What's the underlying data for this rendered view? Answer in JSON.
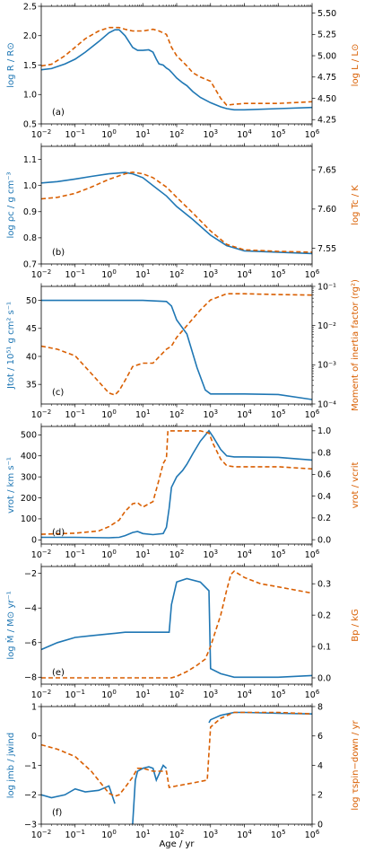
{
  "colors": {
    "blue": "#1f77b4",
    "orange": "#d95f02"
  },
  "xaxis": {
    "label": "Age / yr",
    "type": "log",
    "range": [
      0.01,
      1000000
    ],
    "ticks": [
      {
        "v": 0.01,
        "b": "10",
        "e": "−2"
      },
      {
        "v": 0.1,
        "b": "10",
        "e": "−1"
      },
      {
        "v": 1,
        "b": "10",
        "e": "0"
      },
      {
        "v": 10,
        "b": "10",
        "e": "1"
      },
      {
        "v": 100,
        "b": "10",
        "e": "2"
      },
      {
        "v": 1000,
        "b": "10",
        "e": "3"
      },
      {
        "v": 10000,
        "b": "10",
        "e": "4"
      },
      {
        "v": 100000,
        "b": "10",
        "e": "5"
      },
      {
        "v": 1000000,
        "b": "10",
        "e": "6"
      }
    ]
  },
  "chart_data": [
    {
      "type": "line",
      "panel_label": "(a)",
      "left": {
        "label": "log R / R⊙",
        "range": [
          0.5,
          2.5
        ],
        "ticks": [
          "0.5",
          "1.0",
          "1.5",
          "2.0",
          "2.5"
        ],
        "tick_values": [
          0.5,
          1.0,
          1.5,
          2.0,
          2.5
        ]
      },
      "right": {
        "label": "log L / L⊙",
        "range": [
          4.2,
          5.58
        ],
        "ticks": [
          "4.25",
          "4.50",
          "4.75",
          "5.00",
          "5.25",
          "5.50"
        ],
        "tick_values": [
          4.25,
          4.5,
          4.75,
          5.0,
          5.25,
          5.5
        ]
      },
      "series": [
        {
          "axis": "left",
          "color": "blue",
          "style": "solid",
          "x": [
            0.01,
            0.02,
            0.05,
            0.1,
            0.2,
            0.5,
            1,
            1.5,
            2,
            3,
            5,
            7,
            10,
            15,
            20,
            25,
            30,
            40,
            50,
            60,
            70,
            100,
            150,
            200,
            300,
            500,
            1000,
            2000,
            3000,
            5000,
            10000,
            100000,
            1000000
          ],
          "y": [
            1.42,
            1.44,
            1.52,
            1.6,
            1.72,
            1.9,
            2.05,
            2.1,
            2.1,
            2.0,
            1.8,
            1.75,
            1.75,
            1.76,
            1.72,
            1.6,
            1.52,
            1.5,
            1.45,
            1.42,
            1.38,
            1.28,
            1.2,
            1.15,
            1.05,
            0.95,
            0.86,
            0.79,
            0.76,
            0.74,
            0.74,
            0.76,
            0.78
          ]
        },
        {
          "axis": "right",
          "color": "orange",
          "style": "dashed",
          "x": [
            0.01,
            0.02,
            0.05,
            0.1,
            0.2,
            0.5,
            1,
            2,
            3,
            5,
            10,
            20,
            30,
            50,
            70,
            100,
            200,
            300,
            500,
            1000,
            2000,
            3000,
            5000,
            10000,
            100000,
            1000000
          ],
          "y": [
            4.88,
            4.9,
            5.0,
            5.1,
            5.2,
            5.29,
            5.33,
            5.33,
            5.31,
            5.29,
            5.29,
            5.31,
            5.29,
            5.25,
            5.1,
            5.0,
            4.88,
            4.8,
            4.75,
            4.7,
            4.5,
            4.42,
            4.43,
            4.44,
            4.44,
            4.46
          ]
        }
      ]
    },
    {
      "type": "line",
      "panel_label": "(b)",
      "left": {
        "label": "log ρc / g cm⁻³",
        "range": [
          0.7,
          1.15
        ],
        "ticks": [
          "0.7",
          "0.8",
          "0.9",
          "1.0",
          "1.1"
        ],
        "tick_values": [
          0.7,
          0.8,
          0.9,
          1.0,
          1.1
        ]
      },
      "right": {
        "label": "log Tc / K",
        "range": [
          7.53,
          7.68
        ],
        "ticks": [
          "7.55",
          "7.60",
          "7.65"
        ],
        "tick_values": [
          7.55,
          7.6,
          7.65
        ]
      },
      "series": [
        {
          "axis": "left",
          "color": "blue",
          "style": "solid",
          "x": [
            0.01,
            0.03,
            0.1,
            0.3,
            1,
            3,
            5,
            10,
            20,
            50,
            100,
            300,
            1000,
            3000,
            10000,
            100000,
            1000000
          ],
          "y": [
            1.01,
            1.015,
            1.025,
            1.035,
            1.045,
            1.05,
            1.045,
            1.03,
            1.0,
            0.96,
            0.92,
            0.87,
            0.81,
            0.77,
            0.75,
            0.745,
            0.74
          ]
        },
        {
          "axis": "right",
          "color": "orange",
          "style": "dashed",
          "x": [
            0.01,
            0.03,
            0.1,
            0.3,
            1,
            3,
            5,
            10,
            20,
            50,
            100,
            300,
            1000,
            3000,
            10000,
            100000,
            1000000
          ],
          "y": [
            7.613,
            7.615,
            7.62,
            7.628,
            7.638,
            7.645,
            7.647,
            7.645,
            7.64,
            7.628,
            7.615,
            7.595,
            7.572,
            7.555,
            7.548,
            7.546,
            7.545
          ]
        }
      ]
    },
    {
      "type": "line",
      "panel_label": "(c)",
      "left": {
        "label": "Jtot / 10⁵¹ g cm² s⁻¹",
        "range": [
          31.5,
          52.5
        ],
        "ticks": [
          "35",
          "40",
          "45",
          "50"
        ],
        "tick_values": [
          35,
          40,
          45,
          50
        ]
      },
      "right": {
        "label": "Moment of inertia factor (rg²)",
        "log": true,
        "range": [
          0.0001,
          0.1
        ],
        "ticks": [
          "10⁻⁴",
          "10⁻³",
          "10⁻²",
          "10⁻¹"
        ],
        "tick_values": [
          0.0001,
          0.001,
          0.01,
          0.1
        ]
      },
      "series": [
        {
          "axis": "left",
          "color": "blue",
          "style": "solid",
          "x": [
            0.01,
            1,
            10,
            50,
            70,
            100,
            200,
            400,
            700,
            1000,
            10000,
            100000,
            1000000
          ],
          "y": [
            50,
            50,
            50,
            49.8,
            49,
            46.5,
            44,
            38,
            34,
            33.3,
            33.3,
            33.2,
            32.3
          ]
        },
        {
          "axis": "right",
          "color": "orange",
          "style": "dashed",
          "x": [
            0.01,
            0.03,
            0.1,
            0.3,
            1,
            1.5,
            2,
            3,
            5,
            10,
            20,
            50,
            70,
            100,
            200,
            500,
            1000,
            3000,
            10000,
            100000,
            1000000
          ],
          "y": [
            0.003,
            0.0025,
            0.0017,
            0.0006,
            0.00019,
            0.00017,
            0.00022,
            0.0004,
            0.0009,
            0.0011,
            0.0011,
            0.0025,
            0.003,
            0.005,
            0.01,
            0.025,
            0.045,
            0.065,
            0.065,
            0.062,
            0.06
          ]
        }
      ]
    },
    {
      "type": "line",
      "panel_label": "(d)",
      "left": {
        "label": "vrot / km s⁻¹",
        "range": [
          -20,
          540
        ],
        "ticks": [
          "0",
          "100",
          "200",
          "300",
          "400",
          "500"
        ],
        "tick_values": [
          0,
          100,
          200,
          300,
          400,
          500
        ]
      },
      "right": {
        "label": "vrot / vcrit",
        "range": [
          -0.04,
          1.04
        ],
        "ticks": [
          "0.0",
          "0.2",
          "0.4",
          "0.6",
          "0.8",
          "1.0"
        ],
        "tick_values": [
          0,
          0.2,
          0.4,
          0.6,
          0.8,
          1.0
        ]
      },
      "series": [
        {
          "axis": "left",
          "color": "blue",
          "style": "solid",
          "x": [
            0.01,
            0.1,
            1,
            2,
            3,
            5,
            7,
            10,
            20,
            40,
            50,
            60,
            70,
            100,
            150,
            200,
            300,
            500,
            900,
            1200,
            2000,
            3000,
            5000,
            10000,
            100000,
            1000000
          ],
          "y": [
            12,
            12,
            10,
            12,
            20,
            35,
            40,
            30,
            25,
            30,
            60,
            150,
            250,
            300,
            330,
            360,
            410,
            470,
            520,
            490,
            430,
            400,
            395,
            395,
            393,
            380
          ]
        },
        {
          "axis": "right",
          "color": "orange",
          "style": "dashed",
          "x": [
            0.01,
            0.1,
            0.5,
            1,
            2,
            3,
            5,
            7,
            10,
            20,
            30,
            40,
            50,
            55,
            60,
            100,
            500,
            900,
            1200,
            2000,
            3000,
            5000,
            10000,
            100000,
            1000000
          ],
          "y": [
            0.05,
            0.06,
            0.08,
            0.12,
            0.18,
            0.26,
            0.33,
            0.34,
            0.3,
            0.35,
            0.55,
            0.7,
            0.75,
            1.0,
            1.0,
            1.0,
            1.0,
            0.98,
            0.88,
            0.74,
            0.68,
            0.67,
            0.67,
            0.67,
            0.65
          ]
        }
      ]
    },
    {
      "type": "line",
      "panel_label": "(e)",
      "left": {
        "label": "log Ṁ / M⊙ yr⁻¹",
        "range": [
          -8.4,
          -1.6
        ],
        "ticks": [
          "−8",
          "−6",
          "−4",
          "−2"
        ],
        "tick_values": [
          -8,
          -6,
          -4,
          -2
        ]
      },
      "right": {
        "label": "Bp / kG",
        "range": [
          -0.02,
          0.355
        ],
        "ticks": [
          "0.0",
          "0.1",
          "0.2",
          "0.3"
        ],
        "tick_values": [
          0,
          0.1,
          0.2,
          0.3
        ]
      },
      "series": [
        {
          "axis": "left",
          "color": "blue",
          "style": "solid",
          "x": [
            0.01,
            0.03,
            0.1,
            0.3,
            1,
            3,
            10,
            30,
            60,
            70,
            100,
            200,
            500,
            900,
            1000,
            2000,
            5000,
            10000,
            100000,
            1000000
          ],
          "y": [
            -6.4,
            -6.0,
            -5.7,
            -5.6,
            -5.5,
            -5.4,
            -5.4,
            -5.4,
            -5.4,
            -3.8,
            -2.5,
            -2.3,
            -2.5,
            -3.0,
            -7.5,
            -7.8,
            -8.0,
            -8.0,
            -8.0,
            -7.9
          ]
        },
        {
          "axis": "right",
          "color": "orange",
          "style": "dashed",
          "x": [
            0.01,
            1,
            10,
            50,
            70,
            100,
            200,
            400,
            700,
            1000,
            2000,
            3000,
            4000,
            5000,
            10000,
            30000,
            100000,
            1000000
          ],
          "y": [
            0.0,
            0.0,
            0.0,
            0.0,
            0.0,
            0.005,
            0.02,
            0.04,
            0.06,
            0.1,
            0.2,
            0.28,
            0.33,
            0.34,
            0.32,
            0.3,
            0.29,
            0.27
          ]
        }
      ]
    },
    {
      "type": "line",
      "panel_label": "(f)",
      "left": {
        "label": "log jmb / jwind",
        "range": [
          -3,
          1
        ],
        "ticks": [
          "−3",
          "−2",
          "−1",
          "0",
          "1"
        ],
        "tick_values": [
          -3,
          -2,
          -1,
          0,
          1
        ]
      },
      "right": {
        "label": "log τspin−down / yr",
        "range": [
          0,
          8
        ],
        "ticks": [
          "0",
          "2",
          "4",
          "6",
          "8"
        ],
        "tick_values": [
          0,
          2,
          4,
          6,
          8
        ]
      },
      "series": [
        {
          "axis": "left",
          "color": "blue",
          "style": "solid",
          "x": [
            0.01,
            0.02,
            0.05,
            0.1,
            0.2,
            0.5,
            1,
            1.5
          ],
          "y": [
            -2.0,
            -2.1,
            -2.0,
            -1.8,
            -1.9,
            -1.85,
            -1.7,
            -2.3
          ]
        },
        {
          "axis": "left",
          "color": "blue",
          "style": "solid",
          "x": [
            5,
            6,
            7,
            10,
            15,
            20,
            25,
            30,
            40,
            50
          ],
          "y": [
            -3.0,
            -1.5,
            -1.2,
            -1.1,
            -1.05,
            -1.1,
            -1.5,
            -1.3,
            -1.0,
            -1.1
          ]
        },
        {
          "axis": "left",
          "color": "blue",
          "style": "solid",
          "x": [
            900,
            1000,
            2000,
            5000,
            10000,
            100000,
            1000000
          ],
          "y": [
            0.45,
            0.55,
            0.7,
            0.8,
            0.8,
            0.77,
            0.75
          ]
        },
        {
          "axis": "right",
          "color": "orange",
          "style": "dashed",
          "x": [
            0.01,
            0.03,
            0.1,
            0.3,
            1,
            1.5,
            2,
            3,
            5,
            7,
            10,
            20,
            30,
            40,
            50,
            60,
            100,
            300,
            800,
            1000,
            2000,
            5000,
            10000,
            100000,
            1000000
          ],
          "y": [
            5.4,
            5.1,
            4.6,
            3.6,
            2.1,
            1.9,
            2.0,
            2.5,
            3.2,
            3.8,
            3.8,
            3.6,
            3.6,
            3.6,
            3.6,
            2.5,
            2.6,
            2.8,
            3.0,
            6.6,
            7.2,
            7.6,
            7.6,
            7.6,
            7.5
          ]
        }
      ]
    }
  ]
}
